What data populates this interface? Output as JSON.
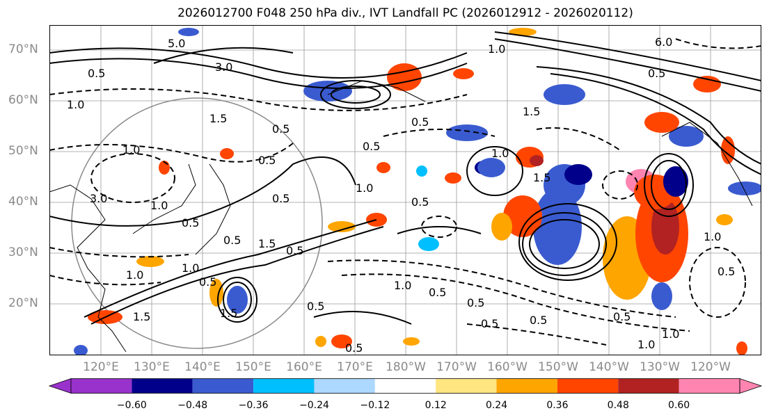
{
  "title": "2026012700 F048 250 hPa div., IVT Landfall PC (2026012912 - 2026020112)",
  "lat_labels": [
    "70°N",
    "60°N",
    "50°N",
    "40°N",
    "30°N",
    "20°N"
  ],
  "lon_labels": [
    "120°E",
    "130°E",
    "140°E",
    "150°E",
    "160°E",
    "170°E",
    "180°W",
    "170°W",
    "160°W",
    "150°W",
    "140°W",
    "130°W",
    "120°W"
  ],
  "colorbar": {
    "colors": [
      "#9932cc",
      "#00008b",
      "#3a5bd0",
      "#00bfff",
      "#add8ff",
      "#ffffff",
      "#ffe680",
      "#ffa500",
      "#ff4500",
      "#b22222",
      "#ff85b0"
    ],
    "tick_labels": [
      "−0.60",
      "−0.48",
      "−0.36",
      "−0.24",
      "−0.12",
      "0.12",
      "0.24",
      "0.36",
      "0.48",
      "0.60"
    ]
  },
  "contour_labels": [
    "5.0",
    "3.0",
    "0.5",
    "1.0",
    "1.5",
    "0.5",
    "3.0",
    "1.0",
    "0.5",
    "1.0",
    "0.5",
    "0.5",
    "1.5",
    "1.0",
    "0.5",
    "1.0",
    "1.5",
    "0.5",
    "0.5",
    "0.5",
    "0.5",
    "1.5",
    "1.0",
    "0.5",
    "0.5",
    "0.5",
    "1.0",
    "0.5",
    "1.5",
    "1.0",
    "0.5",
    "0.5",
    "0.5",
    "1.0",
    "1.5",
    "0.5",
    "0.5",
    "1.0",
    "1.0",
    "1.0",
    "6.0",
    "0.5"
  ]
}
